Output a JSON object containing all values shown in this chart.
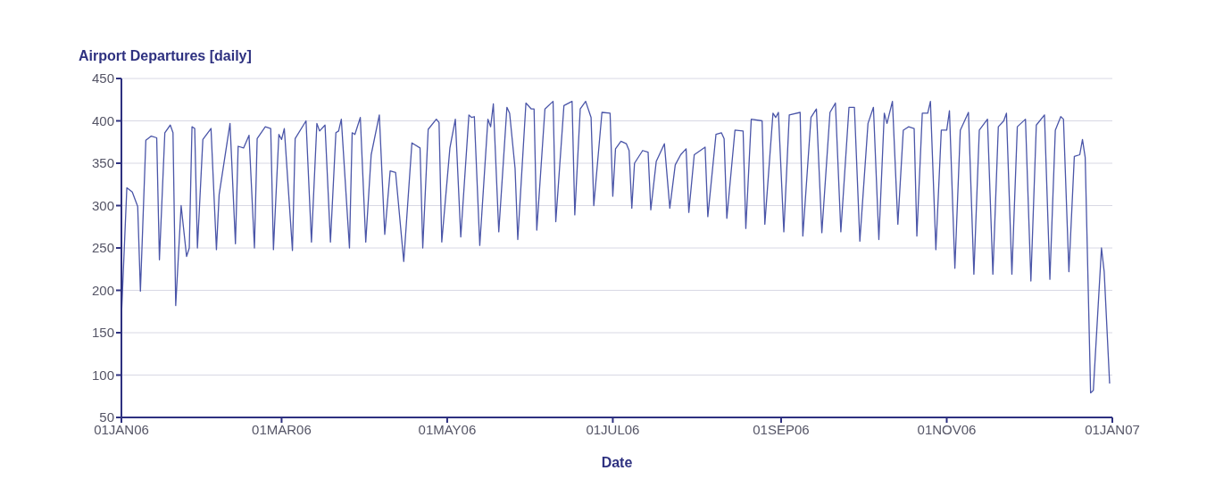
{
  "chart_data": {
    "type": "line",
    "title": "Airport Departures [daily]",
    "xlabel": "Date",
    "color": "#4a55a8",
    "grid": "y",
    "xlim": [
      "2006-01-01",
      "2007-01-01"
    ],
    "xticks": [
      {
        "value": "2006-01-01",
        "label": "01JAN06"
      },
      {
        "value": "2006-03-01",
        "label": "01MAR06"
      },
      {
        "value": "2006-05-01",
        "label": "01MAY06"
      },
      {
        "value": "2006-07-01",
        "label": "01JUL06"
      },
      {
        "value": "2006-09-01",
        "label": "01SEP06"
      },
      {
        "value": "2006-11-01",
        "label": "01NOV06"
      },
      {
        "value": "2007-01-01",
        "label": "01JAN07"
      }
    ],
    "ylim": [
      50,
      450
    ],
    "yticks": [
      50,
      100,
      150,
      200,
      250,
      300,
      350,
      400,
      450
    ],
    "x": [
      "2006-01-01",
      "2006-01-03",
      "2006-01-05",
      "2006-01-07",
      "2006-01-08",
      "2006-01-10",
      "2006-01-12",
      "2006-01-14",
      "2006-01-15",
      "2006-01-17",
      "2006-01-19",
      "2006-01-20",
      "2006-01-21",
      "2006-01-23",
      "2006-01-25",
      "2006-01-26",
      "2006-01-27",
      "2006-01-28",
      "2006-01-29",
      "2006-01-31",
      "2006-02-03",
      "2006-02-05",
      "2006-02-06",
      "2006-02-10",
      "2006-02-12",
      "2006-02-13",
      "2006-02-15",
      "2006-02-17",
      "2006-02-19",
      "2006-02-20",
      "2006-02-23",
      "2006-02-25",
      "2006-02-26",
      "2006-02-28",
      "2006-03-01",
      "2006-03-02",
      "2006-03-05",
      "2006-03-06",
      "2006-03-10",
      "2006-03-12",
      "2006-03-14",
      "2006-03-15",
      "2006-03-17",
      "2006-03-19",
      "2006-03-21",
      "2006-03-22",
      "2006-03-23",
      "2006-03-26",
      "2006-03-27",
      "2006-03-28",
      "2006-03-30",
      "2006-04-01",
      "2006-04-03",
      "2006-04-06",
      "2006-04-08",
      "2006-04-10",
      "2006-04-12",
      "2006-04-15",
      "2006-04-18",
      "2006-04-21",
      "2006-04-22",
      "2006-04-24",
      "2006-04-27",
      "2006-04-28",
      "2006-04-29",
      "2006-05-02",
      "2006-05-04",
      "2006-05-06",
      "2006-05-09",
      "2006-05-10",
      "2006-05-11",
      "2006-05-13",
      "2006-05-16",
      "2006-05-17",
      "2006-05-18",
      "2006-05-20",
      "2006-05-23",
      "2006-05-24",
      "2006-05-26",
      "2006-05-27",
      "2006-05-30",
      "2006-06-01",
      "2006-06-02",
      "2006-06-03",
      "2006-06-06",
      "2006-06-09",
      "2006-06-10",
      "2006-06-13",
      "2006-06-16",
      "2006-06-17",
      "2006-06-19",
      "2006-06-21",
      "2006-06-23",
      "2006-06-24",
      "2006-06-27",
      "2006-06-30",
      "2006-07-01",
      "2006-07-02",
      "2006-07-04",
      "2006-07-06",
      "2006-07-07",
      "2006-07-08",
      "2006-07-09",
      "2006-07-12",
      "2006-07-14",
      "2006-07-15",
      "2006-07-17",
      "2006-07-20",
      "2006-07-22",
      "2006-07-24",
      "2006-07-26",
      "2006-07-28",
      "2006-07-29",
      "2006-07-31",
      "2006-08-04",
      "2006-08-05",
      "2006-08-08",
      "2006-08-10",
      "2006-08-11",
      "2006-08-12",
      "2006-08-15",
      "2006-08-18",
      "2006-08-19",
      "2006-08-21",
      "2006-08-25",
      "2006-08-26",
      "2006-08-29",
      "2006-08-30",
      "2006-08-31",
      "2006-09-02",
      "2006-09-04",
      "2006-09-08",
      "2006-09-09",
      "2006-09-12",
      "2006-09-14",
      "2006-09-16",
      "2006-09-19",
      "2006-09-21",
      "2006-09-23",
      "2006-09-26",
      "2006-09-28",
      "2006-09-30",
      "2006-10-03",
      "2006-10-05",
      "2006-10-07",
      "2006-10-09",
      "2006-10-10",
      "2006-10-12",
      "2006-10-14",
      "2006-10-16",
      "2006-10-18",
      "2006-10-20",
      "2006-10-21",
      "2006-10-23",
      "2006-10-25",
      "2006-10-26",
      "2006-10-28",
      "2006-10-30",
      "2006-11-01",
      "2006-11-02",
      "2006-11-04",
      "2006-11-06",
      "2006-11-09",
      "2006-11-11",
      "2006-11-13",
      "2006-11-16",
      "2006-11-18",
      "2006-11-20",
      "2006-11-22",
      "2006-11-23",
      "2006-11-25",
      "2006-11-27",
      "2006-11-30",
      "2006-12-02",
      "2006-12-04",
      "2006-12-07",
      "2006-12-09",
      "2006-12-11",
      "2006-12-13",
      "2006-12-14",
      "2006-12-16",
      "2006-12-18",
      "2006-12-20",
      "2006-12-21",
      "2006-12-22",
      "2006-12-24",
      "2006-12-25",
      "2006-12-28",
      "2006-12-29",
      "2006-12-31"
    ],
    "values": [
      169,
      321,
      316,
      299,
      199,
      377,
      382,
      380,
      236,
      386,
      395,
      386,
      182,
      300,
      240,
      250,
      393,
      391,
      250,
      378,
      391,
      248,
      313,
      397,
      255,
      370,
      368,
      383,
      250,
      379,
      393,
      391,
      248,
      384,
      378,
      391,
      247,
      379,
      400,
      257,
      397,
      388,
      395,
      257,
      386,
      388,
      402,
      250,
      386,
      384,
      404,
      257,
      360,
      407,
      266,
      341,
      339,
      234,
      374,
      368,
      250,
      390,
      402,
      398,
      257,
      368,
      402,
      263,
      407,
      404,
      405,
      253,
      402,
      393,
      420,
      269,
      416,
      409,
      344,
      260,
      421,
      414,
      414,
      271,
      414,
      423,
      281,
      418,
      423,
      289,
      414,
      423,
      404,
      300,
      410,
      409,
      311,
      367,
      376,
      373,
      365,
      297,
      350,
      365,
      363,
      295,
      352,
      373,
      297,
      348,
      360,
      367,
      292,
      360,
      369,
      287,
      384,
      386,
      379,
      285,
      389,
      388,
      273,
      402,
      400,
      278,
      409,
      404,
      410,
      269,
      407,
      410,
      264,
      404,
      414,
      268,
      410,
      421,
      269,
      416,
      416,
      258,
      397,
      416,
      260,
      409,
      397,
      423,
      278,
      389,
      393,
      391,
      264,
      409,
      409,
      423,
      248,
      389,
      389,
      412,
      226,
      389,
      410,
      219,
      389,
      402,
      219,
      393,
      400,
      409,
      219,
      393,
      402,
      211,
      395,
      407,
      213,
      389,
      405,
      402,
      222,
      358,
      360,
      378,
      357,
      79,
      82,
      250,
      222,
      90
    ]
  }
}
